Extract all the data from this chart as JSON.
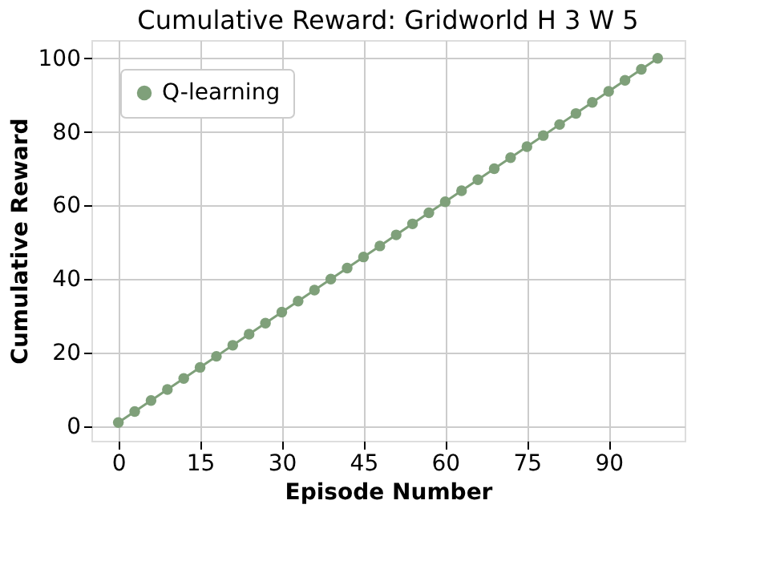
{
  "chart_data": {
    "type": "line",
    "title": "Cumulative Reward: Gridworld H 3 W 5",
    "xlabel": "Episode Number",
    "ylabel": "Cumulative Reward",
    "x": [
      0,
      3,
      6,
      9,
      12,
      15,
      18,
      21,
      24,
      27,
      30,
      33,
      36,
      39,
      42,
      45,
      48,
      51,
      54,
      57,
      60,
      63,
      66,
      69,
      72,
      75,
      78,
      81,
      84,
      87,
      90,
      93,
      96,
      99
    ],
    "series": [
      {
        "name": "Q-learning",
        "color": "#7fa07a",
        "values": [
          1,
          4,
          7,
          10,
          13,
          16,
          19,
          22,
          25,
          28,
          31,
          34,
          37,
          40,
          43,
          46,
          49,
          52,
          55,
          58,
          61,
          64,
          67,
          70,
          73,
          76,
          79,
          82,
          85,
          88,
          91,
          94,
          97,
          100
        ]
      }
    ],
    "xlim": [
      -4.95,
      103.95
    ],
    "xticks": [
      0,
      15,
      30,
      45,
      60,
      75,
      90
    ],
    "ylim": [
      -3.95,
      104.95
    ],
    "yticks": [
      0,
      20,
      40,
      60,
      80,
      100
    ],
    "grid": true,
    "legend": "top left",
    "marker": "circle",
    "line_style": "solid"
  }
}
